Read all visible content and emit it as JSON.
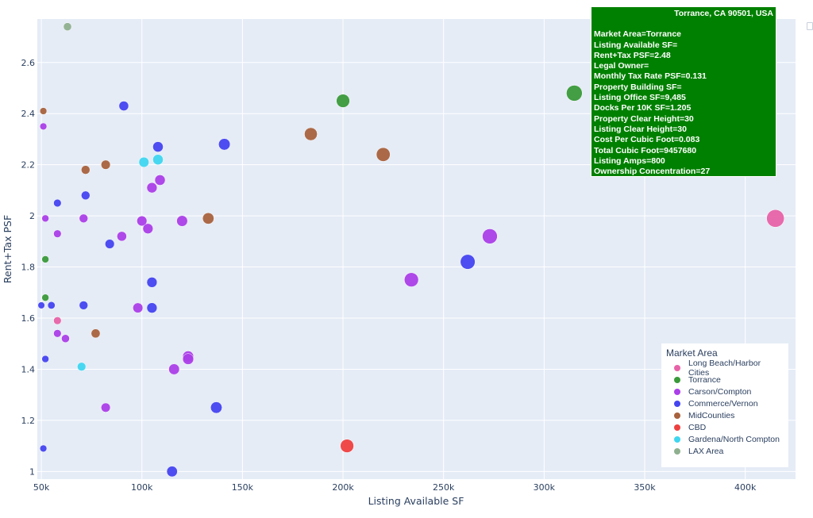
{
  "chart_data": {
    "type": "scatter",
    "title": "",
    "xlabel": "Listing Available SF",
    "ylabel": "Rent+Tax PSF",
    "xlim": [
      48000,
      425000
    ],
    "ylim": [
      0.97,
      2.77
    ],
    "xticks": [
      50000,
      100000,
      150000,
      200000,
      250000,
      300000,
      350000,
      400000
    ],
    "xtick_labels": [
      "50k",
      "100k",
      "150k",
      "200k",
      "250k",
      "300k",
      "350k",
      "400k"
    ],
    "yticks": [
      1,
      1.2,
      1.4,
      1.6,
      1.8,
      2,
      2.2,
      2.4,
      2.6
    ],
    "ytick_labels": [
      "1",
      "1.2",
      "1.4",
      "1.6",
      "1.8",
      "2",
      "2.2",
      "2.4",
      "2.6"
    ],
    "grid": true,
    "legend_position": "bottom-right",
    "legend_title": "Market Area",
    "series": [
      {
        "name": "Long Beach/Harbor Cities",
        "color": "#e763a8",
        "points": [
          {
            "x": 58000,
            "y": 1.59
          },
          {
            "x": 415000,
            "y": 1.99
          }
        ]
      },
      {
        "name": "Torrance",
        "color": "#3a9a3a",
        "points": [
          {
            "x": 52000,
            "y": 1.83
          },
          {
            "x": 52000,
            "y": 1.68
          },
          {
            "x": 200000,
            "y": 2.45
          },
          {
            "x": 315000,
            "y": 2.48
          }
        ]
      },
      {
        "name": "Carson/Compton",
        "color": "#ab3fe8",
        "points": [
          {
            "x": 51000,
            "y": 2.35
          },
          {
            "x": 52000,
            "y": 1.99
          },
          {
            "x": 58000,
            "y": 1.93
          },
          {
            "x": 58000,
            "y": 1.54
          },
          {
            "x": 62000,
            "y": 1.52
          },
          {
            "x": 71000,
            "y": 1.99
          },
          {
            "x": 82000,
            "y": 1.25
          },
          {
            "x": 90000,
            "y": 1.92
          },
          {
            "x": 98000,
            "y": 1.64
          },
          {
            "x": 100000,
            "y": 1.98
          },
          {
            "x": 103000,
            "y": 1.95
          },
          {
            "x": 105000,
            "y": 2.11
          },
          {
            "x": 109000,
            "y": 2.14
          },
          {
            "x": 116000,
            "y": 1.4
          },
          {
            "x": 120000,
            "y": 1.98
          },
          {
            "x": 123000,
            "y": 1.45
          },
          {
            "x": 123000,
            "y": 1.44
          },
          {
            "x": 234000,
            "y": 1.75
          },
          {
            "x": 273000,
            "y": 1.92
          }
        ]
      },
      {
        "name": "Commerce/Vernon",
        "color": "#4545f0",
        "points": [
          {
            "x": 50000,
            "y": 1.65
          },
          {
            "x": 51000,
            "y": 1.09
          },
          {
            "x": 52000,
            "y": 1.44
          },
          {
            "x": 55000,
            "y": 1.65
          },
          {
            "x": 58000,
            "y": 2.05
          },
          {
            "x": 71000,
            "y": 1.65
          },
          {
            "x": 72000,
            "y": 2.08
          },
          {
            "x": 84000,
            "y": 1.89
          },
          {
            "x": 91000,
            "y": 2.43
          },
          {
            "x": 105000,
            "y": 1.74
          },
          {
            "x": 105000,
            "y": 1.64
          },
          {
            "x": 108000,
            "y": 2.27
          },
          {
            "x": 115000,
            "y": 1.0
          },
          {
            "x": 137000,
            "y": 1.25
          },
          {
            "x": 141000,
            "y": 2.28
          },
          {
            "x": 262000,
            "y": 1.82
          }
        ]
      },
      {
        "name": "MidCounties",
        "color": "#a8623e",
        "points": [
          {
            "x": 51000,
            "y": 2.41
          },
          {
            "x": 72000,
            "y": 2.18
          },
          {
            "x": 77000,
            "y": 1.54
          },
          {
            "x": 82000,
            "y": 2.2
          },
          {
            "x": 133000,
            "y": 1.99
          },
          {
            "x": 184000,
            "y": 2.32
          },
          {
            "x": 220000,
            "y": 2.24
          }
        ]
      },
      {
        "name": "CBD",
        "color": "#ef4040",
        "points": [
          {
            "x": 202000,
            "y": 1.1
          }
        ]
      },
      {
        "name": "Gardena/North Compton",
        "color": "#3fd6f0",
        "points": [
          {
            "x": 70000,
            "y": 1.41
          },
          {
            "x": 101000,
            "y": 2.21
          },
          {
            "x": 108000,
            "y": 2.22
          }
        ]
      },
      {
        "name": "LAX Area",
        "color": "#8fb08f",
        "points": [
          {
            "x": 63000,
            "y": 2.74
          }
        ]
      }
    ]
  },
  "tooltip": {
    "title": "Torrance, CA 90501, USA",
    "background": "#008000",
    "lines": [
      "Market Area=Torrance",
      "Listing Available SF=",
      "Rent+Tax PSF=2.48",
      "Legal Owner=",
      "Monthly Tax Rate PSF=0.131",
      "Property Building SF=",
      "Listing Office SF=9,485",
      "Docks Per 10K SF=1.205",
      "Property Clear Height=30",
      "Listing Clear Height=30",
      "Cost Per Cubic Foot=0.083",
      "Total Cubic Foot=9457680",
      "Listing Amps=800",
      "Ownership Concentration=27"
    ]
  }
}
